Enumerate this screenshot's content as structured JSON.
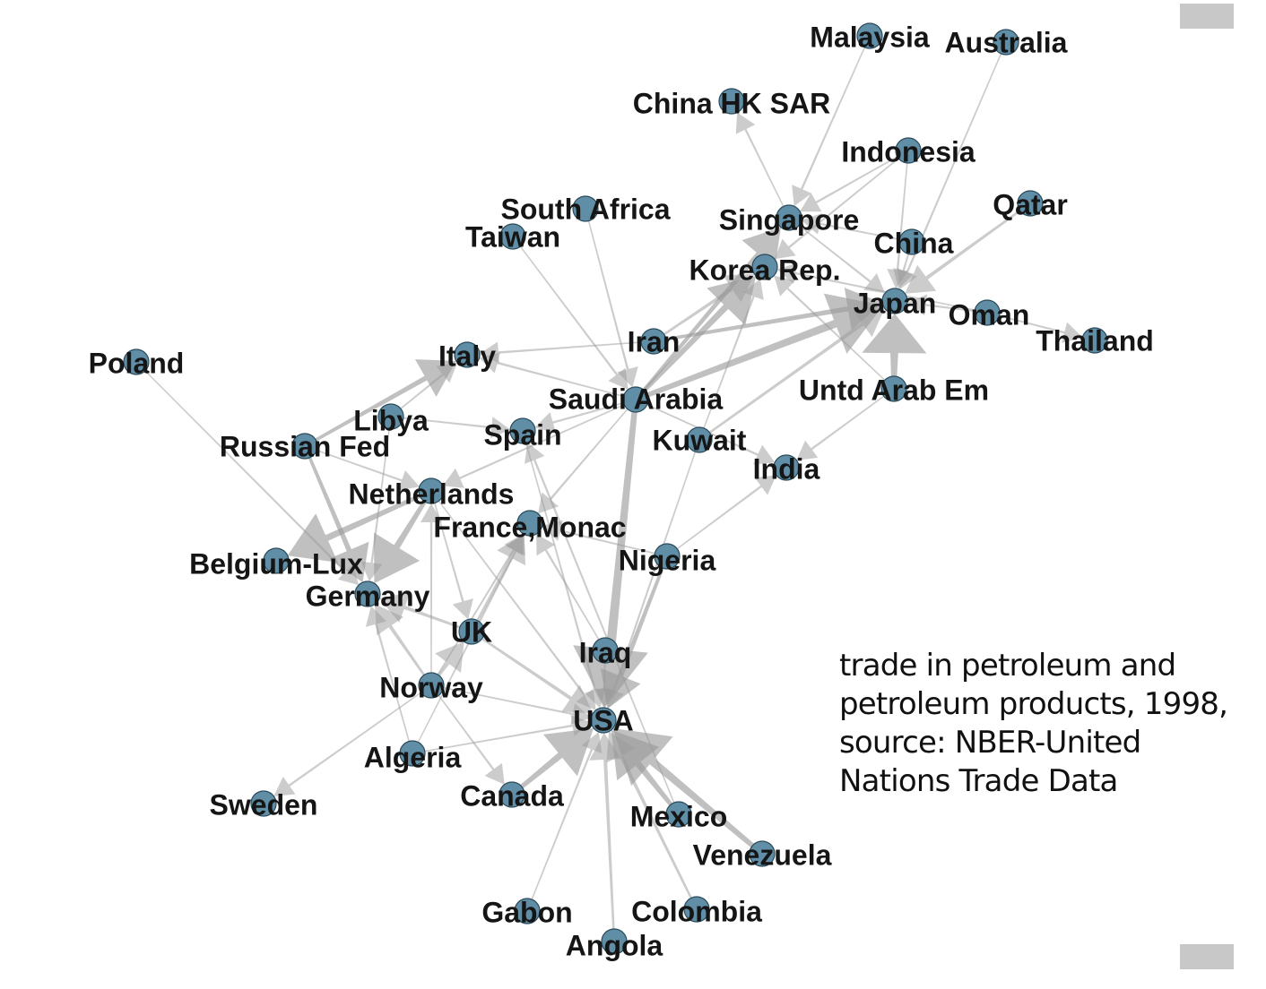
{
  "caption": "trade in petroleum and petroleum products, 1998, source: NBER-United Nations Trade Data",
  "colors": {
    "node_fill": "#5f8ea6",
    "node_stroke": "#2a4a5a",
    "edge": "#9a9a9a",
    "label": "#151515",
    "corner_box": "#c8c8c8"
  },
  "network": {
    "nodes": [
      {
        "id": "Malaysia",
        "label": "Malaysia"
      },
      {
        "id": "Australia",
        "label": "Australia"
      },
      {
        "id": "ChinaHK",
        "label": "China HK SAR"
      },
      {
        "id": "Indonesia",
        "label": "Indonesia"
      },
      {
        "id": "SouthAfrica",
        "label": "South Africa"
      },
      {
        "id": "Taiwan",
        "label": "Taiwan"
      },
      {
        "id": "Singapore",
        "label": "Singapore"
      },
      {
        "id": "Qatar",
        "label": "Qatar"
      },
      {
        "id": "China",
        "label": "China"
      },
      {
        "id": "Korea",
        "label": "Korea Rep."
      },
      {
        "id": "Japan",
        "label": "Japan"
      },
      {
        "id": "Oman",
        "label": "Oman"
      },
      {
        "id": "Thailand",
        "label": "Thailand"
      },
      {
        "id": "Iran",
        "label": "Iran"
      },
      {
        "id": "Poland",
        "label": "Poland"
      },
      {
        "id": "Italy",
        "label": "Italy"
      },
      {
        "id": "SaudiArabia",
        "label": "Saudi Arabia"
      },
      {
        "id": "UAE",
        "label": "Untd Arab Em"
      },
      {
        "id": "Libya",
        "label": "Libya"
      },
      {
        "id": "Spain",
        "label": "Spain"
      },
      {
        "id": "Kuwait",
        "label": "Kuwait"
      },
      {
        "id": "RussianFed",
        "label": "Russian Fed"
      },
      {
        "id": "India",
        "label": "India"
      },
      {
        "id": "Netherlands",
        "label": "Netherlands"
      },
      {
        "id": "France",
        "label": "France,Monac"
      },
      {
        "id": "Nigeria",
        "label": "Nigeria"
      },
      {
        "id": "BelgiumLux",
        "label": "Belgium-Lux"
      },
      {
        "id": "Germany",
        "label": "Germany"
      },
      {
        "id": "UK",
        "label": "UK"
      },
      {
        "id": "Iraq",
        "label": "Iraq"
      },
      {
        "id": "Norway",
        "label": "Norway"
      },
      {
        "id": "USA",
        "label": "USA"
      },
      {
        "id": "Algeria",
        "label": "Algeria"
      },
      {
        "id": "Sweden",
        "label": "Sweden"
      },
      {
        "id": "Canada",
        "label": "Canada"
      },
      {
        "id": "Mexico",
        "label": "Mexico"
      },
      {
        "id": "Venezuela",
        "label": "Venezuela"
      },
      {
        "id": "Gabon",
        "label": "Gabon"
      },
      {
        "id": "Colombia",
        "label": "Colombia"
      },
      {
        "id": "Angola",
        "label": "Angola"
      }
    ],
    "edges": [
      {
        "from": "SaudiArabia",
        "to": "USA",
        "weight": 6
      },
      {
        "from": "SaudiArabia",
        "to": "Japan",
        "weight": 5
      },
      {
        "from": "SaudiArabia",
        "to": "Korea",
        "weight": 4
      },
      {
        "from": "SaudiArabia",
        "to": "Singapore",
        "weight": 3
      },
      {
        "from": "SaudiArabia",
        "to": "France",
        "weight": 1
      },
      {
        "from": "SaudiArabia",
        "to": "Netherlands",
        "weight": 1
      },
      {
        "from": "SaudiArabia",
        "to": "Italy",
        "weight": 1
      },
      {
        "from": "SaudiArabia",
        "to": "Spain",
        "weight": 1
      },
      {
        "from": "SaudiArabia",
        "to": "India",
        "weight": 1
      },
      {
        "from": "UAE",
        "to": "Japan",
        "weight": 5
      },
      {
        "from": "UAE",
        "to": "Korea",
        "weight": 1
      },
      {
        "from": "UAE",
        "to": "India",
        "weight": 1
      },
      {
        "from": "Iran",
        "to": "Japan",
        "weight": 3
      },
      {
        "from": "Iran",
        "to": "Italy",
        "weight": 1
      },
      {
        "from": "Iran",
        "to": "Korea",
        "weight": 2
      },
      {
        "from": "Kuwait",
        "to": "Japan",
        "weight": 2
      },
      {
        "from": "Kuwait",
        "to": "Korea",
        "weight": 1
      },
      {
        "from": "Kuwait",
        "to": "USA",
        "weight": 1
      },
      {
        "from": "Qatar",
        "to": "Japan",
        "weight": 2
      },
      {
        "from": "Oman",
        "to": "Japan",
        "weight": 1
      },
      {
        "from": "Oman",
        "to": "Korea",
        "weight": 1
      },
      {
        "from": "Oman",
        "to": "Thailand",
        "weight": 1
      },
      {
        "from": "Indonesia",
        "to": "Japan",
        "weight": 1
      },
      {
        "from": "Indonesia",
        "to": "Singapore",
        "weight": 1
      },
      {
        "from": "Indonesia",
        "to": "Korea",
        "weight": 1
      },
      {
        "from": "Australia",
        "to": "Japan",
        "weight": 1
      },
      {
        "from": "Malaysia",
        "to": "Singapore",
        "weight": 1
      },
      {
        "from": "Singapore",
        "to": "ChinaHK",
        "weight": 1
      },
      {
        "from": "Singapore",
        "to": "Japan",
        "weight": 1
      },
      {
        "from": "China",
        "to": "Japan",
        "weight": 1
      },
      {
        "from": "China",
        "to": "Singapore",
        "weight": 1
      },
      {
        "from": "SouthAfrica",
        "to": "SaudiArabia",
        "weight": 1
      },
      {
        "from": "Taiwan",
        "to": "SaudiArabia",
        "weight": 1
      },
      {
        "from": "Iraq",
        "to": "USA",
        "weight": 1
      },
      {
        "from": "Iraq",
        "to": "France",
        "weight": 1
      },
      {
        "from": "Nigeria",
        "to": "USA",
        "weight": 3
      },
      {
        "from": "Nigeria",
        "to": "France",
        "weight": 1
      },
      {
        "from": "Nigeria",
        "to": "India",
        "weight": 1
      },
      {
        "from": "Venezuela",
        "to": "USA",
        "weight": 5
      },
      {
        "from": "Mexico",
        "to": "USA",
        "weight": 4
      },
      {
        "from": "Canada",
        "to": "USA",
        "weight": 4
      },
      {
        "from": "Colombia",
        "to": "USA",
        "weight": 2
      },
      {
        "from": "Angola",
        "to": "USA",
        "weight": 2
      },
      {
        "from": "Gabon",
        "to": "USA",
        "weight": 1
      },
      {
        "from": "Algeria",
        "to": "USA",
        "weight": 1
      },
      {
        "from": "Algeria",
        "to": "France",
        "weight": 1
      },
      {
        "from": "Algeria",
        "to": "Germany",
        "weight": 1
      },
      {
        "from": "UK",
        "to": "USA",
        "weight": 2
      },
      {
        "from": "UK",
        "to": "Germany",
        "weight": 2
      },
      {
        "from": "UK",
        "to": "France",
        "weight": 2
      },
      {
        "from": "Norway",
        "to": "UK",
        "weight": 2
      },
      {
        "from": "Norway",
        "to": "Germany",
        "weight": 2
      },
      {
        "from": "Norway",
        "to": "USA",
        "weight": 1
      },
      {
        "from": "Norway",
        "to": "Canada",
        "weight": 1
      },
      {
        "from": "Norway",
        "to": "Netherlands",
        "weight": 1
      },
      {
        "from": "Norway",
        "to": "France",
        "weight": 1
      },
      {
        "from": "Norway",
        "to": "Sweden",
        "weight": 1
      },
      {
        "from": "RussianFed",
        "to": "Germany",
        "weight": 3
      },
      {
        "from": "RussianFed",
        "to": "Italy",
        "weight": 3
      },
      {
        "from": "RussianFed",
        "to": "Netherlands",
        "weight": 1
      },
      {
        "from": "Libya",
        "to": "Italy",
        "weight": 1
      },
      {
        "from": "Libya",
        "to": "Germany",
        "weight": 1
      },
      {
        "from": "Libya",
        "to": "Spain",
        "weight": 1
      },
      {
        "from": "Poland",
        "to": "Germany",
        "weight": 1
      },
      {
        "from": "Netherlands",
        "to": "Germany",
        "weight": 4
      },
      {
        "from": "Netherlands",
        "to": "BelgiumLux",
        "weight": 4
      },
      {
        "from": "Netherlands",
        "to": "USA",
        "weight": 1
      },
      {
        "from": "Netherlands",
        "to": "UK",
        "weight": 1
      },
      {
        "from": "Spain",
        "to": "USA",
        "weight": 1
      },
      {
        "from": "Mexico",
        "to": "Spain",
        "weight": 1
      }
    ]
  }
}
